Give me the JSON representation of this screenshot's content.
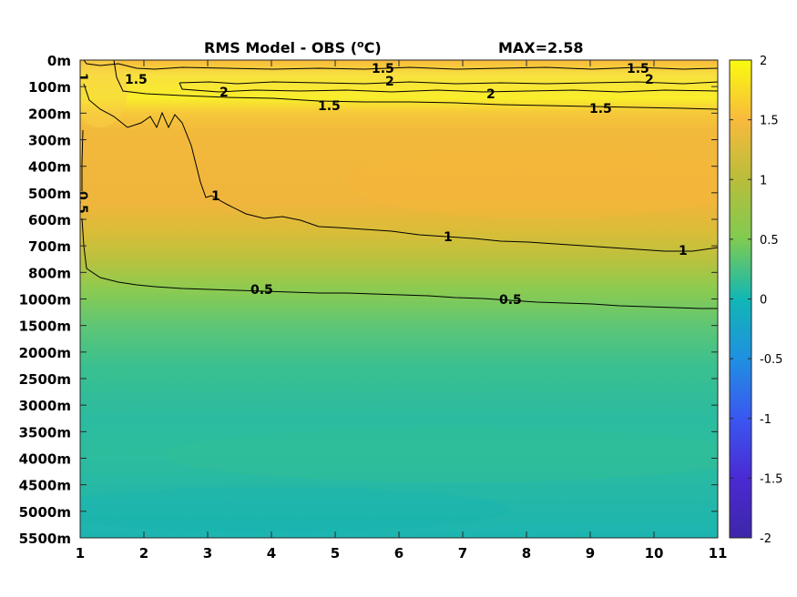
{
  "chart_data": {
    "type": "heatmap",
    "title": "RMS Model - OBS (",
    "title_unit_sup": "o",
    "title_unit_after": "C)",
    "max_label": "MAX=2.58",
    "x_ticks": [
      "1",
      "2",
      "3",
      "4",
      "5",
      "6",
      "7",
      "8",
      "9",
      "10",
      "11"
    ],
    "xlim": [
      1,
      11
    ],
    "y_ticks": [
      "0m",
      "100m",
      "200m",
      "300m",
      "400m",
      "500m",
      "600m",
      "700m",
      "800m",
      "1000m",
      "1500m",
      "2000m",
      "2500m",
      "3000m",
      "3500m",
      "4000m",
      "4500m",
      "5000m",
      "5500m"
    ],
    "colorbar": {
      "ticks": [
        "2",
        "1.5",
        "1",
        "0.5",
        "0",
        "-0.5",
        "-1",
        "-1.5",
        "-2"
      ],
      "range": [
        -2,
        2
      ],
      "colormap": "parula"
    },
    "contours": [
      {
        "level": 2,
        "label": "2"
      },
      {
        "level": 1.5,
        "label": "1.5"
      },
      {
        "level": 1,
        "label": "1"
      },
      {
        "level": 0.5,
        "label": "0.5"
      }
    ],
    "field_profile": [
      {
        "depth": "0m",
        "value": 1.6
      },
      {
        "depth": "100m",
        "value": 1.9
      },
      {
        "depth": "200m",
        "value": 1.35
      },
      {
        "depth": "300m",
        "value": 1.25
      },
      {
        "depth": "400m",
        "value": 1.25
      },
      {
        "depth": "500m",
        "value": 1.2
      },
      {
        "depth": "600m",
        "value": 1.05
      },
      {
        "depth": "700m",
        "value": 0.95
      },
      {
        "depth": "800m",
        "value": 0.7
      },
      {
        "depth": "1000m",
        "value": 0.5
      },
      {
        "depth": "1500m",
        "value": 0.45
      },
      {
        "depth": "2000m",
        "value": 0.4
      },
      {
        "depth": "2500m",
        "value": 0.35
      },
      {
        "depth": "3000m",
        "value": 0.35
      },
      {
        "depth": "3500m",
        "value": 0.35
      },
      {
        "depth": "4000m",
        "value": 0.4
      },
      {
        "depth": "4500m",
        "value": 0.35
      },
      {
        "depth": "5000m",
        "value": 0.3
      },
      {
        "depth": "5500m",
        "value": 0.25
      }
    ],
    "colors": {
      "parula_2": "#f9fb0e",
      "parula_1_5": "#f8ba3d",
      "parula_1": "#b9bd3b",
      "parula_0_5": "#7fcb51",
      "parula_0": "#11b7b5",
      "parula_m0_5": "#1f90e0",
      "parula_m1": "#3a57f1",
      "parula_m1_5": "#4a2ad4",
      "parula_m2": "#3e26a8"
    }
  }
}
